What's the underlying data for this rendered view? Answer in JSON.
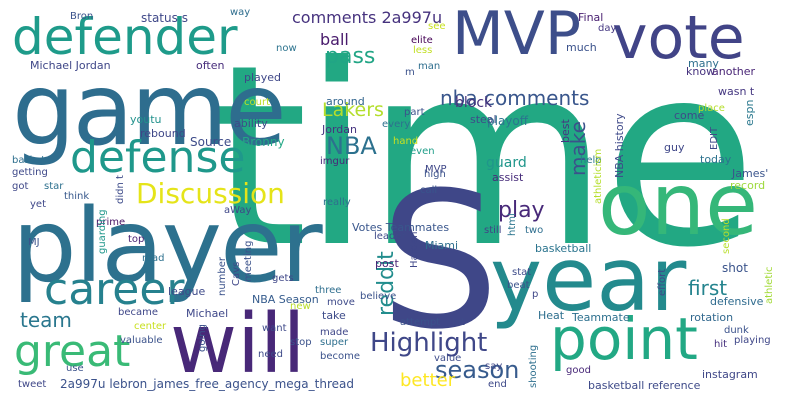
{
  "words": [
    {
      "text": "time",
      "color": "#22a883"
    },
    {
      "text": "S",
      "color": "#3f4788"
    },
    {
      "text": "player",
      "color": "#2d718e"
    },
    {
      "text": "game",
      "color": "#2e6d8e"
    },
    {
      "text": "year",
      "color": "#238a8d"
    },
    {
      "text": "one",
      "color": "#35b779"
    },
    {
      "text": "will",
      "color": "#482878"
    },
    {
      "text": "point",
      "color": "#22a884"
    },
    {
      "text": "MVP",
      "color": "#3d4e8a"
    },
    {
      "text": "vote",
      "color": "#414487"
    },
    {
      "text": "defender",
      "color": "#1e9b8a"
    },
    {
      "text": "defense",
      "color": "#1f988b"
    },
    {
      "text": "career",
      "color": "#26818e"
    },
    {
      "text": "great",
      "color": "#39ba76"
    },
    {
      "text": "Discussion",
      "color": "#e5e419"
    },
    {
      "text": "Highlight",
      "color": "#3f4788"
    },
    {
      "text": "season",
      "color": "#375b8d"
    },
    {
      "text": "NBA",
      "color": "#2c718e"
    },
    {
      "text": "pass",
      "color": "#21a585"
    },
    {
      "text": "nba comments",
      "color": "#39568c"
    },
    {
      "text": "Lakers",
      "color": "#b4de2c"
    },
    {
      "text": "play",
      "color": "#482979"
    },
    {
      "text": "make",
      "color": "#3b518b"
    },
    {
      "text": "team",
      "color": "#2a778e"
    },
    {
      "text": "first",
      "color": "#25848e"
    },
    {
      "text": "reddit",
      "color": "#228d8d"
    },
    {
      "text": "better",
      "color": "#fde725"
    },
    {
      "text": "ball",
      "color": "#481a6c"
    },
    {
      "text": "comments 2a997u",
      "color": "#46327e"
    },
    {
      "text": "Michael Jordan",
      "color": "#3f4788"
    },
    {
      "text": "2a997u lebron_james_free_agency_mega_thread",
      "color": "#3b528b"
    },
    {
      "text": "NBA Season",
      "color": "#365c8d"
    },
    {
      "text": "Michael",
      "color": "#3f4889"
    },
    {
      "text": "Jordan",
      "color": "#46337f"
    },
    {
      "text": "Bronny",
      "color": "#22a785"
    },
    {
      "text": "Source",
      "color": "#3e4c8a"
    },
    {
      "text": "Votes Teammates",
      "color": "#39568c"
    },
    {
      "text": "imgur",
      "color": "#482878"
    },
    {
      "text": "guard",
      "color": "#1f968b"
    },
    {
      "text": "block",
      "color": "#46327e"
    },
    {
      "text": "playoff",
      "color": "#2b758e"
    },
    {
      "text": "best",
      "color": "#453581"
    },
    {
      "text": "NBA history",
      "color": "#3e4989"
    },
    {
      "text": "shot",
      "color": "#3a538b"
    },
    {
      "text": "defensive",
      "color": "#2f6b8e"
    },
    {
      "text": "Teammate",
      "color": "#2d708e"
    },
    {
      "text": "rotation",
      "color": "#31688e"
    },
    {
      "text": "basketball reference",
      "color": "#3e4a89"
    },
    {
      "text": "instagram",
      "color": "#3f4788"
    },
    {
      "text": "Final",
      "color": "#481f70"
    },
    {
      "text": "elite",
      "color": "#440154"
    },
    {
      "text": "status s",
      "color": "#3f4889"
    },
    {
      "text": "Bron",
      "color": "#3b528b"
    },
    {
      "text": "way",
      "color": "#2e6e8e"
    },
    {
      "text": "less",
      "color": "#c2df23"
    },
    {
      "text": "see",
      "color": "#c8e020"
    },
    {
      "text": "day",
      "color": "#453882"
    },
    {
      "text": "EDIT",
      "color": "#3f4889"
    },
    {
      "text": "much",
      "color": "#3b528b"
    },
    {
      "text": "many",
      "color": "#2e6f8e"
    },
    {
      "text": "know",
      "color": "#46327e"
    },
    {
      "text": "another",
      "color": "#482475"
    },
    {
      "text": "wasn t",
      "color": "#453781"
    },
    {
      "text": "espn",
      "color": "#2a788e"
    },
    {
      "text": "come",
      "color": "#3e4989"
    },
    {
      "text": "guy",
      "color": "#3f4788"
    },
    {
      "text": "today",
      "color": "#2c728e"
    },
    {
      "text": "James'",
      "color": "#3a548c"
    },
    {
      "text": "record",
      "color": "#9dd93b"
    },
    {
      "text": "now",
      "color": "#2c738e"
    },
    {
      "text": "back",
      "color": "#3e4a89"
    },
    {
      "text": "often",
      "color": "#472d7b"
    },
    {
      "text": "played",
      "color": "#3f4788"
    },
    {
      "text": "around",
      "color": "#32658e"
    },
    {
      "text": "man",
      "color": "#2e6e8e"
    },
    {
      "text": "part",
      "color": "#3b528b"
    },
    {
      "text": "court",
      "color": "#bddf26"
    },
    {
      "text": "ability",
      "color": "#3e4a89"
    },
    {
      "text": "basket",
      "color": "#2e6f8e"
    },
    {
      "text": "getting",
      "color": "#3e4989"
    },
    {
      "text": "youtu",
      "color": "#21918c"
    },
    {
      "text": "rebound",
      "color": "#3f4788"
    },
    {
      "text": "every",
      "color": "#2d718e"
    },
    {
      "text": "hand",
      "color": "#c8e020"
    },
    {
      "text": "even",
      "color": "#1f9e89"
    },
    {
      "text": "steal",
      "color": "#3e4c8a"
    },
    {
      "text": "assist",
      "color": "#472c7a"
    },
    {
      "text": "help",
      "color": "#2a778e"
    },
    {
      "text": "high",
      "color": "#3b528b"
    },
    {
      "text": "call",
      "color": "#3a548c"
    },
    {
      "text": "athleticism",
      "color": "#b5de2b"
    },
    {
      "text": "got",
      "color": "#3f4788"
    },
    {
      "text": "star",
      "color": "#2d708e"
    },
    {
      "text": "think",
      "color": "#38598c"
    },
    {
      "text": "yet",
      "color": "#3f4889"
    },
    {
      "text": "prime",
      "color": "#471365"
    },
    {
      "text": "MJ",
      "color": "#3a538b"
    },
    {
      "text": "guarding",
      "color": "#1f978b"
    },
    {
      "text": "didn t",
      "color": "#3e4c8a"
    },
    {
      "text": "top",
      "color": "#482173"
    },
    {
      "text": "aWay",
      "color": "#3f4788"
    },
    {
      "text": "really",
      "color": "#2e6f8e"
    },
    {
      "text": "leader",
      "color": "#3e4a89"
    },
    {
      "text": "meeting",
      "color": "#3b528b"
    },
    {
      "text": "Cavs",
      "color": "#3f4788"
    },
    {
      "text": "read",
      "color": "#2d718e"
    },
    {
      "text": "Harden",
      "color": "#3f4788"
    },
    {
      "text": "html",
      "color": "#2b758e"
    },
    {
      "text": "two",
      "color": "#2e6e8e"
    },
    {
      "text": "still",
      "color": "#414487"
    },
    {
      "text": "basketball",
      "color": "#2b748e"
    },
    {
      "text": "Miami",
      "color": "#2e6f8e"
    },
    {
      "text": "second",
      "color": "#b8de29"
    },
    {
      "text": "effort",
      "color": "#3e4989"
    },
    {
      "text": "athletic",
      "color": "#a2da37"
    },
    {
      "text": "playing",
      "color": "#3f4788"
    },
    {
      "text": "dunk",
      "color": "#3b528b"
    },
    {
      "text": "hit",
      "color": "#46307e"
    },
    {
      "text": "stat",
      "color": "#3e4c8a"
    },
    {
      "text": "beat",
      "color": "#3b528b"
    },
    {
      "text": "p",
      "color": "#3f4788"
    },
    {
      "text": "gets",
      "color": "#3f4788"
    },
    {
      "text": "three",
      "color": "#2e6e8e"
    },
    {
      "text": "number",
      "color": "#3b528b"
    },
    {
      "text": "believe",
      "color": "#3b528b"
    },
    {
      "text": "move",
      "color": "#3e4a89"
    },
    {
      "text": "post",
      "color": "#482576"
    },
    {
      "text": "league",
      "color": "#3e4a89"
    },
    {
      "text": "became",
      "color": "#3f4788"
    },
    {
      "text": "new",
      "color": "#b8de29"
    },
    {
      "text": "take",
      "color": "#3e4c8a"
    },
    {
      "text": "center",
      "color": "#c8e020"
    },
    {
      "text": "valuable",
      "color": "#3b528b"
    },
    {
      "text": "going",
      "color": "#3b528b"
    },
    {
      "text": "want",
      "color": "#3e4989"
    },
    {
      "text": "made",
      "color": "#3f4788"
    },
    {
      "text": "stop",
      "color": "#3b528b"
    },
    {
      "text": "super",
      "color": "#2e6f8e"
    },
    {
      "text": "lot",
      "color": "#3e4a89"
    },
    {
      "text": "attempt",
      "color": "#3b528b"
    },
    {
      "text": "Heat",
      "color": "#2e6f8e"
    },
    {
      "text": "need",
      "color": "#3e4a89"
    },
    {
      "text": "become",
      "color": "#3b528b"
    },
    {
      "text": "value",
      "color": "#3e4c8a"
    },
    {
      "text": "say",
      "color": "#3f4788"
    },
    {
      "text": "shooting",
      "color": "#2e6f8e"
    },
    {
      "text": "good",
      "color": "#482878"
    },
    {
      "text": "end",
      "color": "#3e4989"
    },
    {
      "text": "tweet",
      "color": "#3f4788"
    },
    {
      "text": "use",
      "color": "#3b528b"
    },
    {
      "text": "place",
      "color": "#b5de2b"
    },
    {
      "text": "MVP",
      "color": "#3f4788"
    },
    {
      "text": "m",
      "color": "#3b528b"
    }
  ]
}
